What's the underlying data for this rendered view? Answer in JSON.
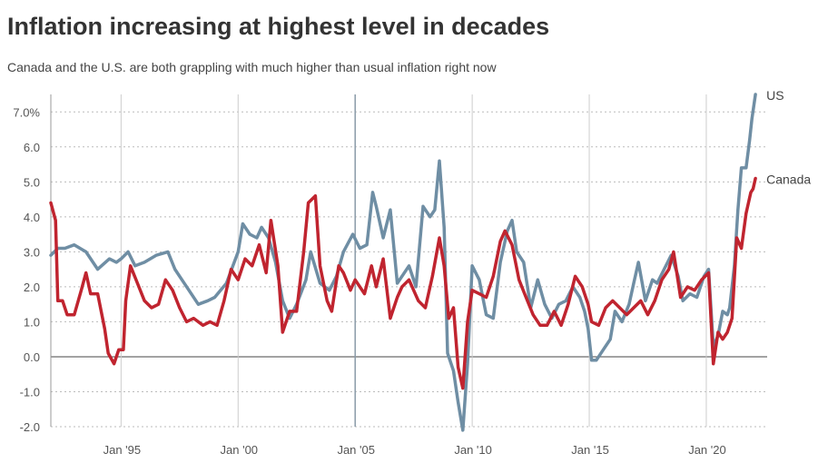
{
  "title": "Inflation increasing at highest level in decades",
  "subtitle": "Canada and the U.S. are both grappling with much higher than usual inflation right now",
  "chart_data": {
    "type": "line",
    "title": "Inflation increasing at highest level in decades",
    "subtitle": "Canada and the U.S. are both grappling with much higher than usual inflation right now",
    "y_unit": "%",
    "ylim": [
      -2.0,
      7.5
    ],
    "y_ticks": [
      {
        "value": -2.0,
        "label": "-2.0"
      },
      {
        "value": -1.0,
        "label": "-1.0"
      },
      {
        "value": 0.0,
        "label": "0.0"
      },
      {
        "value": 1.0,
        "label": "1.0"
      },
      {
        "value": 2.0,
        "label": "2.0"
      },
      {
        "value": 3.0,
        "label": "3.0"
      },
      {
        "value": 4.0,
        "label": "4.0"
      },
      {
        "value": 5.0,
        "label": "5.0"
      },
      {
        "value": 6.0,
        "label": "6.0"
      },
      {
        "value": 7.0,
        "label": "7.0%"
      }
    ],
    "xlim": [
      1992.0,
      2022.6
    ],
    "x_ticks": [
      {
        "value": 1995,
        "label": "Jan '95"
      },
      {
        "value": 2000,
        "label": "Jan '00"
      },
      {
        "value": 2005,
        "label": "Jan '05"
      },
      {
        "value": 2010,
        "label": "Jan '10"
      },
      {
        "value": 2015,
        "label": "Jan '15"
      },
      {
        "value": 2020,
        "label": "Jan '20"
      }
    ],
    "grid": true,
    "series": [
      {
        "name": "US",
        "color": "#6f8ea4",
        "points": [
          [
            1992.0,
            2.9
          ],
          [
            1992.3,
            3.1
          ],
          [
            1992.6,
            3.1
          ],
          [
            1993.0,
            3.2
          ],
          [
            1993.5,
            3.0
          ],
          [
            1994.0,
            2.5
          ],
          [
            1994.5,
            2.8
          ],
          [
            1994.8,
            2.7
          ],
          [
            1995.0,
            2.8
          ],
          [
            1995.3,
            3.0
          ],
          [
            1995.6,
            2.6
          ],
          [
            1996.0,
            2.7
          ],
          [
            1996.5,
            2.9
          ],
          [
            1997.0,
            3.0
          ],
          [
            1997.3,
            2.5
          ],
          [
            1997.6,
            2.2
          ],
          [
            1997.9,
            1.9
          ],
          [
            1998.3,
            1.5
          ],
          [
            1998.7,
            1.6
          ],
          [
            1999.0,
            1.7
          ],
          [
            1999.5,
            2.1
          ],
          [
            2000.0,
            3.0
          ],
          [
            2000.2,
            3.8
          ],
          [
            2000.5,
            3.5
          ],
          [
            2000.8,
            3.4
          ],
          [
            2001.0,
            3.7
          ],
          [
            2001.3,
            3.4
          ],
          [
            2001.6,
            2.7
          ],
          [
            2001.9,
            1.6
          ],
          [
            2002.2,
            1.1
          ],
          [
            2002.5,
            1.5
          ],
          [
            2002.9,
            2.2
          ],
          [
            2003.1,
            3.0
          ],
          [
            2003.5,
            2.1
          ],
          [
            2003.9,
            1.9
          ],
          [
            2004.2,
            2.3
          ],
          [
            2004.5,
            3.0
          ],
          [
            2004.9,
            3.5
          ],
          [
            2005.2,
            3.1
          ],
          [
            2005.5,
            3.2
          ],
          [
            2005.75,
            4.7
          ],
          [
            2005.9,
            4.3
          ],
          [
            2006.2,
            3.4
          ],
          [
            2006.5,
            4.2
          ],
          [
            2006.8,
            2.1
          ],
          [
            2007.0,
            2.3
          ],
          [
            2007.3,
            2.6
          ],
          [
            2007.6,
            2.0
          ],
          [
            2007.9,
            4.3
          ],
          [
            2008.2,
            4.0
          ],
          [
            2008.4,
            4.2
          ],
          [
            2008.6,
            5.6
          ],
          [
            2008.8,
            3.7
          ],
          [
            2008.95,
            0.1
          ],
          [
            2009.2,
            -0.4
          ],
          [
            2009.4,
            -1.3
          ],
          [
            2009.6,
            -2.1
          ],
          [
            2009.8,
            -0.2
          ],
          [
            2010.0,
            2.6
          ],
          [
            2010.3,
            2.2
          ],
          [
            2010.6,
            1.2
          ],
          [
            2010.9,
            1.1
          ],
          [
            2011.2,
            2.7
          ],
          [
            2011.5,
            3.6
          ],
          [
            2011.7,
            3.9
          ],
          [
            2011.9,
            3.0
          ],
          [
            2012.2,
            2.7
          ],
          [
            2012.5,
            1.4
          ],
          [
            2012.8,
            2.2
          ],
          [
            2013.1,
            1.5
          ],
          [
            2013.4,
            1.1
          ],
          [
            2013.7,
            1.5
          ],
          [
            2014.0,
            1.6
          ],
          [
            2014.3,
            2.0
          ],
          [
            2014.6,
            1.7
          ],
          [
            2014.8,
            1.3
          ],
          [
            2014.95,
            0.8
          ],
          [
            2015.1,
            -0.1
          ],
          [
            2015.3,
            -0.1
          ],
          [
            2015.6,
            0.2
          ],
          [
            2015.9,
            0.5
          ],
          [
            2016.1,
            1.3
          ],
          [
            2016.4,
            1.0
          ],
          [
            2016.7,
            1.5
          ],
          [
            2016.9,
            2.1
          ],
          [
            2017.1,
            2.7
          ],
          [
            2017.4,
            1.6
          ],
          [
            2017.7,
            2.2
          ],
          [
            2017.9,
            2.1
          ],
          [
            2018.2,
            2.5
          ],
          [
            2018.5,
            2.9
          ],
          [
            2018.8,
            2.3
          ],
          [
            2019.0,
            1.6
          ],
          [
            2019.3,
            1.8
          ],
          [
            2019.6,
            1.7
          ],
          [
            2019.9,
            2.3
          ],
          [
            2020.1,
            2.5
          ],
          [
            2020.3,
            0.3
          ],
          [
            2020.5,
            0.6
          ],
          [
            2020.7,
            1.3
          ],
          [
            2020.9,
            1.2
          ],
          [
            2021.0,
            1.4
          ],
          [
            2021.2,
            2.6
          ],
          [
            2021.35,
            4.2
          ],
          [
            2021.5,
            5.4
          ],
          [
            2021.7,
            5.4
          ],
          [
            2021.85,
            6.2
          ],
          [
            2021.95,
            6.8
          ],
          [
            2022.1,
            7.5
          ]
        ]
      },
      {
        "name": "Canada",
        "color": "#c0242f",
        "points": [
          [
            1992.0,
            4.4
          ],
          [
            1992.2,
            3.9
          ],
          [
            1992.3,
            1.6
          ],
          [
            1992.5,
            1.6
          ],
          [
            1992.7,
            1.2
          ],
          [
            1993.0,
            1.2
          ],
          [
            1993.3,
            1.9
          ],
          [
            1993.5,
            2.4
          ],
          [
            1993.7,
            1.8
          ],
          [
            1994.0,
            1.8
          ],
          [
            1994.3,
            0.8
          ],
          [
            1994.45,
            0.1
          ],
          [
            1994.7,
            -0.2
          ],
          [
            1994.9,
            0.2
          ],
          [
            1995.1,
            0.2
          ],
          [
            1995.2,
            1.6
          ],
          [
            1995.4,
            2.6
          ],
          [
            1995.7,
            2.1
          ],
          [
            1996.0,
            1.6
          ],
          [
            1996.3,
            1.4
          ],
          [
            1996.6,
            1.5
          ],
          [
            1996.9,
            2.2
          ],
          [
            1997.2,
            1.9
          ],
          [
            1997.5,
            1.4
          ],
          [
            1997.8,
            1.0
          ],
          [
            1998.1,
            1.1
          ],
          [
            1998.5,
            0.9
          ],
          [
            1998.8,
            1.0
          ],
          [
            1999.1,
            0.9
          ],
          [
            1999.4,
            1.6
          ],
          [
            1999.7,
            2.5
          ],
          [
            2000.0,
            2.2
          ],
          [
            2000.3,
            2.8
          ],
          [
            2000.6,
            2.6
          ],
          [
            2000.9,
            3.2
          ],
          [
            2001.2,
            2.4
          ],
          [
            2001.4,
            3.9
          ],
          [
            2001.7,
            2.6
          ],
          [
            2001.9,
            0.7
          ],
          [
            2002.2,
            1.3
          ],
          [
            2002.5,
            1.3
          ],
          [
            2002.8,
            3.0
          ],
          [
            2003.0,
            4.4
          ],
          [
            2003.3,
            4.6
          ],
          [
            2003.5,
            2.6
          ],
          [
            2003.8,
            1.6
          ],
          [
            2004.0,
            1.3
          ],
          [
            2004.3,
            2.6
          ],
          [
            2004.5,
            2.4
          ],
          [
            2004.8,
            1.9
          ],
          [
            2005.0,
            2.2
          ],
          [
            2005.4,
            1.8
          ],
          [
            2005.7,
            2.6
          ],
          [
            2005.9,
            2.0
          ],
          [
            2006.2,
            2.8
          ],
          [
            2006.5,
            1.1
          ],
          [
            2006.8,
            1.7
          ],
          [
            2007.0,
            2.0
          ],
          [
            2007.3,
            2.2
          ],
          [
            2007.7,
            1.6
          ],
          [
            2008.0,
            1.4
          ],
          [
            2008.3,
            2.3
          ],
          [
            2008.6,
            3.4
          ],
          [
            2008.8,
            2.6
          ],
          [
            2009.0,
            1.1
          ],
          [
            2009.2,
            1.4
          ],
          [
            2009.4,
            -0.3
          ],
          [
            2009.6,
            -0.9
          ],
          [
            2009.8,
            1.0
          ],
          [
            2010.0,
            1.9
          ],
          [
            2010.3,
            1.8
          ],
          [
            2010.6,
            1.7
          ],
          [
            2010.9,
            2.3
          ],
          [
            2011.2,
            3.3
          ],
          [
            2011.4,
            3.6
          ],
          [
            2011.7,
            3.2
          ],
          [
            2012.0,
            2.2
          ],
          [
            2012.3,
            1.7
          ],
          [
            2012.6,
            1.2
          ],
          [
            2012.9,
            0.9
          ],
          [
            2013.2,
            0.9
          ],
          [
            2013.5,
            1.3
          ],
          [
            2013.8,
            0.9
          ],
          [
            2014.1,
            1.5
          ],
          [
            2014.4,
            2.3
          ],
          [
            2014.7,
            2.0
          ],
          [
            2014.95,
            1.5
          ],
          [
            2015.1,
            1.0
          ],
          [
            2015.4,
            0.9
          ],
          [
            2015.7,
            1.4
          ],
          [
            2016.0,
            1.6
          ],
          [
            2016.3,
            1.4
          ],
          [
            2016.6,
            1.2
          ],
          [
            2016.9,
            1.4
          ],
          [
            2017.2,
            1.6
          ],
          [
            2017.5,
            1.2
          ],
          [
            2017.8,
            1.6
          ],
          [
            2018.1,
            2.2
          ],
          [
            2018.4,
            2.5
          ],
          [
            2018.6,
            3.0
          ],
          [
            2018.9,
            1.7
          ],
          [
            2019.2,
            2.0
          ],
          [
            2019.5,
            1.9
          ],
          [
            2019.8,
            2.2
          ],
          [
            2020.1,
            2.4
          ],
          [
            2020.3,
            -0.2
          ],
          [
            2020.5,
            0.7
          ],
          [
            2020.7,
            0.5
          ],
          [
            2020.9,
            0.7
          ],
          [
            2021.1,
            1.1
          ],
          [
            2021.3,
            3.4
          ],
          [
            2021.5,
            3.1
          ],
          [
            2021.7,
            4.1
          ],
          [
            2021.9,
            4.7
          ],
          [
            2022.0,
            4.8
          ],
          [
            2022.1,
            5.1
          ]
        ]
      }
    ]
  }
}
